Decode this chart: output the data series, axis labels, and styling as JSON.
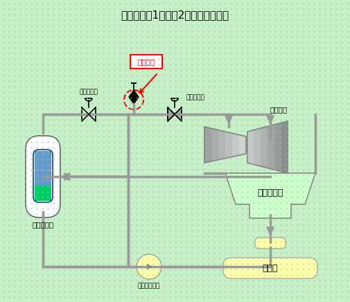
{
  "title": "伊方発電所1号機　2次系系統概略図",
  "bg_color": "#c8f0c8",
  "pipe_color": "#999999",
  "pipe_lw": 2.5,
  "arrow_color": "#999999",
  "turbine_fill": "#d0d0d0",
  "condenser_fill": "#ccffcc",
  "condenser_stroke": "#888888",
  "deaerator_fill": "#ffffaa",
  "pump_fill": "#ffffaa",
  "sg_outer_fill": "#e8e8ff",
  "sg_inner_fill_top": "#a0c0e0",
  "sg_inner_fill_bot": "#00cc66",
  "label_当該箇所": "当該箇所",
  "label_主蒸隔離弁": "主蒸隔離弁",
  "label_主蒸気止弁": "主蒸気止弁",
  "label_タービン": "タービン",
  "label_復水器": "復　水　器",
  "label_脱気器": "脱気器",
  "label_蒸気発生器": "蒸気発生器",
  "label_主給水ポンプ": "主給水ポンプ"
}
